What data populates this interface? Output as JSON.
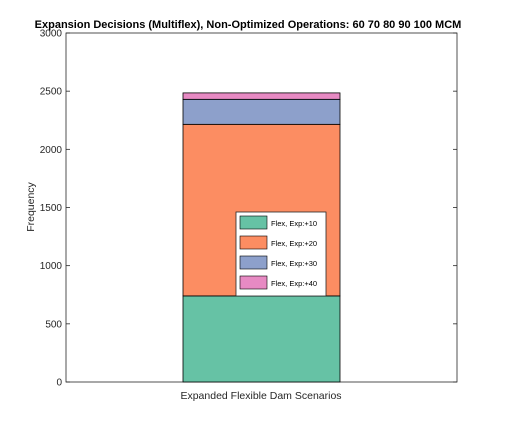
{
  "chart_data": {
    "type": "bar",
    "stacked": true,
    "title": "Expansion Decisions (Multiflex), Non-Optimized Operations: 60   70   80   90  100 MCM",
    "xlabel": "Expanded Flexible Dam Scenarios",
    "ylabel": "Frequency",
    "categories": [
      ""
    ],
    "ylim": [
      0,
      3000
    ],
    "yticks": [
      0,
      500,
      1000,
      1500,
      2000,
      2500,
      3000
    ],
    "grid": false,
    "legend_position": "inside-right",
    "series": [
      {
        "name": "Flex, Exp:+10",
        "values": [
          740
        ],
        "color": "#66c2a5"
      },
      {
        "name": "Flex, Exp:+20",
        "values": [
          1475
        ],
        "color": "#fc8d62"
      },
      {
        "name": "Flex, Exp:+30",
        "values": [
          215
        ],
        "color": "#8da0cb"
      },
      {
        "name": "Flex, Exp:+40",
        "values": [
          55
        ],
        "color": "#e78ac3"
      }
    ]
  }
}
